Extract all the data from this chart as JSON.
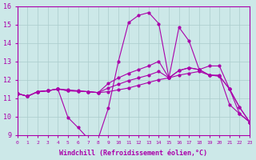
{
  "xlabel": "Windchill (Refroidissement éolien,°C)",
  "bg_color": "#cce8e8",
  "grid_color": "#aacccc",
  "line_color": "#aa00aa",
  "xlim": [
    0,
    23
  ],
  "ylim": [
    9,
    16
  ],
  "xticks": [
    0,
    1,
    2,
    3,
    4,
    5,
    6,
    7,
    8,
    9,
    10,
    11,
    12,
    13,
    14,
    15,
    16,
    17,
    18,
    19,
    20,
    21,
    22,
    23
  ],
  "yticks": [
    9,
    10,
    11,
    12,
    13,
    14,
    15,
    16
  ],
  "series": [
    [
      11.25,
      11.1,
      11.35,
      11.4,
      11.5,
      9.95,
      9.4,
      8.8,
      8.8,
      10.45,
      13.0,
      15.1,
      15.5,
      15.65,
      15.05,
      12.1,
      14.85,
      14.1,
      12.55,
      12.25,
      12.25,
      10.65,
      10.15,
      9.7
    ],
    [
      11.25,
      11.1,
      11.35,
      11.4,
      11.5,
      11.45,
      11.4,
      11.35,
      11.3,
      11.35,
      11.45,
      11.55,
      11.7,
      11.85,
      12.0,
      12.1,
      12.25,
      12.35,
      12.45,
      12.25,
      12.2,
      11.5,
      10.5,
      9.7
    ],
    [
      11.25,
      11.1,
      11.35,
      11.4,
      11.5,
      11.4,
      11.38,
      11.35,
      11.3,
      11.55,
      11.75,
      11.95,
      12.1,
      12.25,
      12.45,
      12.1,
      12.5,
      12.65,
      12.55,
      12.25,
      12.2,
      11.5,
      10.5,
      9.7
    ],
    [
      11.25,
      11.1,
      11.35,
      11.4,
      11.5,
      11.4,
      11.38,
      11.35,
      11.3,
      11.8,
      12.1,
      12.35,
      12.55,
      12.75,
      13.0,
      12.1,
      12.5,
      12.65,
      12.55,
      12.75,
      12.75,
      11.5,
      10.15,
      9.7
    ]
  ]
}
